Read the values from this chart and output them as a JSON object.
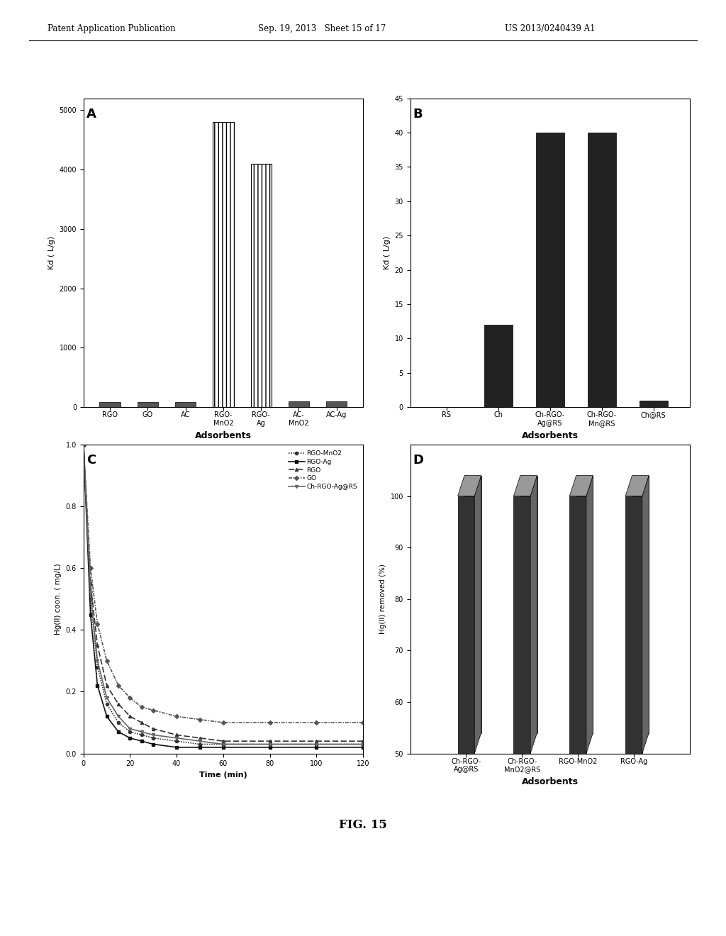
{
  "A": {
    "categories": [
      "RGO",
      "GO",
      "AC",
      "RGO-\nMnO2",
      "RGO-\nAg",
      "AC-\nMnO2",
      "AC-Ag"
    ],
    "values": [
      80,
      80,
      80,
      4800,
      4100,
      100,
      100
    ],
    "ylim": [
      0,
      5200
    ],
    "yticks": [
      0,
      1000,
      2000,
      3000,
      4000,
      5000
    ],
    "ylabel": "Kd ( L/g)",
    "xlabel": "Adsorbents",
    "label": "A",
    "hatch_indices": [
      3,
      4
    ],
    "bar_color": "#555555"
  },
  "B": {
    "categories": [
      "RS",
      "Ch",
      "Ch-RGO-\nAg@RS",
      "Ch-RGO-\nMn@RS",
      "Ch@RS"
    ],
    "values": [
      0,
      12,
      40,
      40,
      1
    ],
    "ylim": [
      0,
      45
    ],
    "yticks": [
      0,
      5,
      10,
      15,
      20,
      25,
      30,
      35,
      40,
      45
    ],
    "ylabel": "Kd ( L/g)",
    "xlabel": "Adsorbents",
    "label": "B",
    "bar_color": "#222222"
  },
  "C": {
    "label": "C",
    "xlabel": "Time (min)",
    "ylabel": "Hg(II) coon. ( mg/L)",
    "xlim": [
      0,
      120
    ],
    "ylim": [
      0,
      1.0
    ],
    "yticks": [
      0,
      0.2,
      0.4,
      0.6,
      0.8,
      1
    ],
    "xticks": [
      0,
      20,
      40,
      60,
      80,
      100,
      120
    ],
    "series": {
      "RGO-MnO2": {
        "time": [
          0,
          3,
          6,
          10,
          15,
          20,
          25,
          30,
          40,
          50,
          60,
          80,
          100,
          120
        ],
        "conc": [
          1.0,
          0.5,
          0.28,
          0.16,
          0.1,
          0.07,
          0.06,
          0.05,
          0.04,
          0.03,
          0.03,
          0.03,
          0.03,
          0.03
        ]
      },
      "RGO-Ag": {
        "time": [
          0,
          3,
          6,
          10,
          15,
          20,
          25,
          30,
          40,
          50,
          60,
          80,
          100,
          120
        ],
        "conc": [
          1.0,
          0.45,
          0.22,
          0.12,
          0.07,
          0.05,
          0.04,
          0.03,
          0.02,
          0.02,
          0.02,
          0.02,
          0.02,
          0.02
        ]
      },
      "RGO": {
        "time": [
          0,
          3,
          6,
          10,
          15,
          20,
          25,
          30,
          40,
          50,
          60,
          80,
          100,
          120
        ],
        "conc": [
          1.0,
          0.55,
          0.35,
          0.22,
          0.16,
          0.12,
          0.1,
          0.08,
          0.06,
          0.05,
          0.04,
          0.04,
          0.04,
          0.04
        ]
      },
      "GO": {
        "time": [
          0,
          3,
          6,
          10,
          15,
          20,
          25,
          30,
          40,
          50,
          60,
          80,
          100,
          120
        ],
        "conc": [
          1.0,
          0.6,
          0.42,
          0.3,
          0.22,
          0.18,
          0.15,
          0.14,
          0.12,
          0.11,
          0.1,
          0.1,
          0.1,
          0.1
        ]
      },
      "Ch-RGO-Ag@RS": {
        "time": [
          0,
          3,
          6,
          10,
          15,
          20,
          25,
          30,
          40,
          50,
          60,
          80,
          100,
          120
        ],
        "conc": [
          1.0,
          0.52,
          0.3,
          0.18,
          0.12,
          0.08,
          0.07,
          0.06,
          0.05,
          0.04,
          0.03,
          0.03,
          0.03,
          0.03
        ]
      }
    }
  },
  "D": {
    "label": "D",
    "categories": [
      "Ch-RGO-\nAg@RS",
      "Ch-RGO-\nMnO2@RS",
      "RGO-MnO2",
      "RGO-Ag"
    ],
    "values": [
      100,
      100,
      100,
      100
    ],
    "ylabel": "Hg(II) removed (%)",
    "xlabel": "Adsorbents",
    "ylim": [
      50,
      110
    ],
    "yticks": [
      50,
      60,
      70,
      80,
      90,
      100
    ],
    "bar_color": "#444444"
  },
  "header": {
    "left": "Patent Application Publication",
    "center": "Sep. 19, 2013   Sheet 15 of 17",
    "right": "US 2013/0240439 A1"
  },
  "fig_label": "FIG. 15",
  "background_color": "#ffffff"
}
